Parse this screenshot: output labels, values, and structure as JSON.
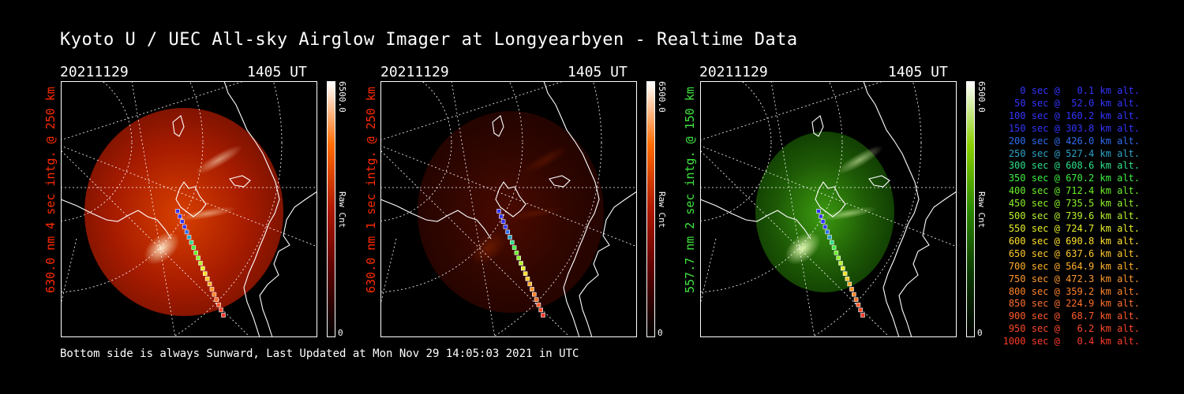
{
  "title": "Kyoto U / UEC All-sky Airglow Imager at Longyearbyen - Realtime Data",
  "footer": "Bottom side is always Sunward, Last Updated at Mon Nov 29 14:05:03 2021 in UTC",
  "panels": [
    {
      "date": "20211129",
      "time": "1405 UT",
      "side_label": "630.0 nm 4 sec intg. @ 250 km",
      "side_color": "#ff2a00",
      "cb_max": "6500.0",
      "cb_min": "0",
      "cb_label": "Raw Cnt",
      "color_scheme": "red"
    },
    {
      "date": "20211129",
      "time": "1405 UT",
      "side_label": "630.0 nm 1 sec intg. @ 250 km",
      "side_color": "#ff2a00",
      "cb_max": "6500.0",
      "cb_min": "0",
      "cb_label": "Raw Cnt",
      "color_scheme": "dark-red"
    },
    {
      "date": "20211129",
      "time": "1405 UT",
      "side_label": "557.7 nm 2 sec intg. @ 150 km",
      "side_color": "#3ee53e",
      "cb_max": "6500.0",
      "cb_min": "0",
      "cb_label": "Raw Cnt",
      "color_scheme": "green"
    }
  ],
  "legend": [
    {
      "text": "0 sec @   0.1 km alt.",
      "color": "#3434ff"
    },
    {
      "text": "50 sec @  52.0 km alt.",
      "color": "#3434ff"
    },
    {
      "text": "100 sec @ 160.2 km alt.",
      "color": "#3434ff"
    },
    {
      "text": "150 sec @ 303.8 km alt.",
      "color": "#3434ff"
    },
    {
      "text": "200 sec @ 426.0 km alt.",
      "color": "#2f6cf0"
    },
    {
      "text": "250 sec @ 527.4 km alt.",
      "color": "#2aa3c8"
    },
    {
      "text": "300 sec @ 608.6 km alt.",
      "color": "#2ce08a"
    },
    {
      "text": "350 sec @ 670.2 km alt.",
      "color": "#3ef040"
    },
    {
      "text": "400 sec @ 712.4 km alt.",
      "color": "#6af02a"
    },
    {
      "text": "450 sec @ 735.5 km alt.",
      "color": "#8ef22a"
    },
    {
      "text": "500 sec @ 739.6 km alt.",
      "color": "#b8f22a"
    },
    {
      "text": "550 sec @ 724.7 km alt.",
      "color": "#e6f02a"
    },
    {
      "text": "600 sec @ 690.8 km alt.",
      "color": "#ffe02a"
    },
    {
      "text": "650 sec @ 637.6 km alt.",
      "color": "#ffc82a"
    },
    {
      "text": "700 sec @ 564.9 km alt.",
      "color": "#ffb02a"
    },
    {
      "text": "750 sec @ 472.3 km alt.",
      "color": "#ff982a"
    },
    {
      "text": "800 sec @ 359.2 km alt.",
      "color": "#ff842a"
    },
    {
      "text": "850 sec @ 224.9 km alt.",
      "color": "#ff702a"
    },
    {
      "text": "900 sec @  68.7 km alt.",
      "color": "#ff5a2a"
    },
    {
      "text": "950 sec @   6.2 km alt.",
      "color": "#ff482a"
    },
    {
      "text": "1000 sec @   0.4 km alt.",
      "color": "#ff3a2a"
    }
  ]
}
